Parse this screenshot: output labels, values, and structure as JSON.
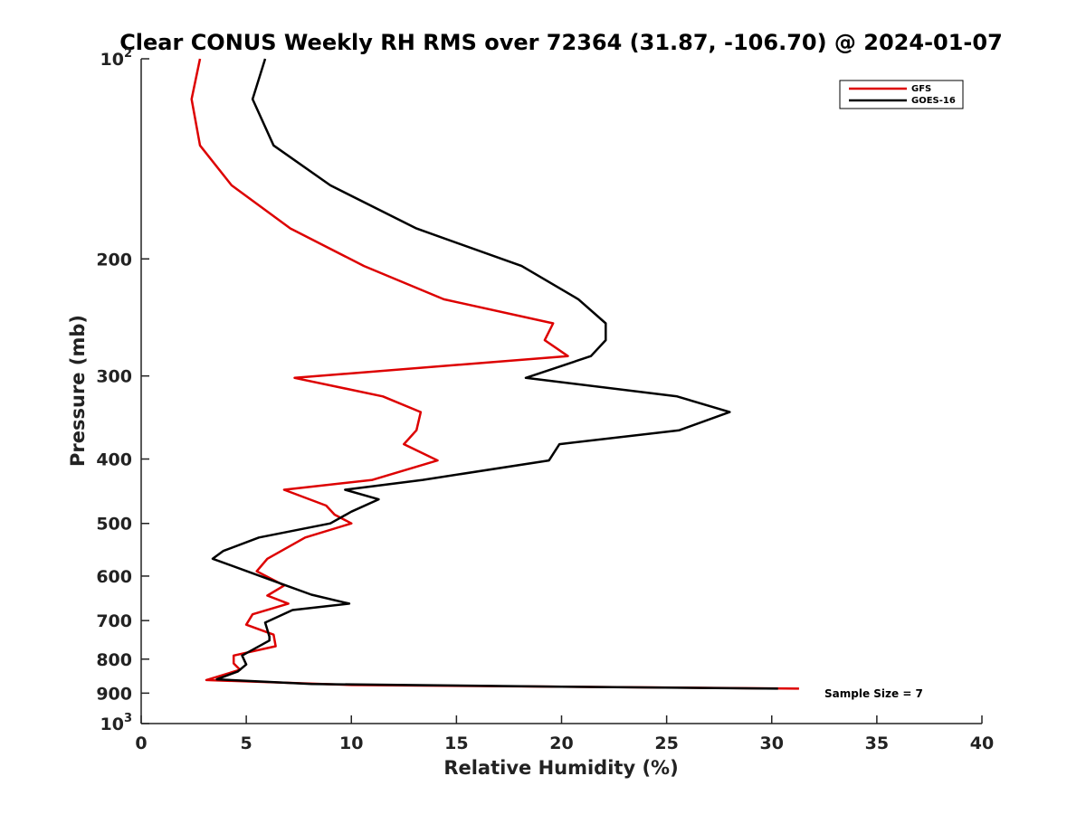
{
  "chart_data": {
    "type": "line",
    "title": "Clear CONUS Weekly RH RMS over 72364 (31.87, -106.70) @ 2024-01-07",
    "xlabel": "Relative Humidity (%)",
    "ylabel": "Pressure (mb)",
    "xlim": [
      0,
      40
    ],
    "ylim": [
      1000,
      100
    ],
    "yscale": "log",
    "y_reversed": true,
    "grid": false,
    "legend": "top-right",
    "x_ticks": [
      0,
      5,
      10,
      15,
      20,
      25,
      30,
      35,
      40
    ],
    "y_ticks": [
      {
        "value": 100,
        "base": "10",
        "exp": "2"
      },
      {
        "value": 200,
        "label": "200"
      },
      {
        "value": 300,
        "label": "300"
      },
      {
        "value": 400,
        "label": "400"
      },
      {
        "value": 500,
        "label": "500"
      },
      {
        "value": 600,
        "label": "600"
      },
      {
        "value": 700,
        "label": "700"
      },
      {
        "value": 800,
        "label": "800"
      },
      {
        "value": 900,
        "label": "900"
      },
      {
        "value": 1000,
        "base": "10",
        "exp": "3"
      }
    ],
    "annotation": "Sample Size = 7",
    "series": [
      {
        "name": "GFS",
        "color": "#dd0000",
        "points": [
          [
            2.8,
            100
          ],
          [
            2.4,
            115
          ],
          [
            2.8,
            135
          ],
          [
            4.3,
            155
          ],
          [
            7.1,
            180
          ],
          [
            10.6,
            205
          ],
          [
            14.4,
            230
          ],
          [
            19.6,
            250
          ],
          [
            19.2,
            265
          ],
          [
            20.3,
            280
          ],
          [
            7.3,
            302
          ],
          [
            11.5,
            322
          ],
          [
            13.3,
            340
          ],
          [
            13.1,
            362
          ],
          [
            12.5,
            380
          ],
          [
            14.1,
            402
          ],
          [
            11.0,
            430
          ],
          [
            6.8,
            445
          ],
          [
            8.8,
            470
          ],
          [
            9.2,
            485
          ],
          [
            10.0,
            500
          ],
          [
            7.8,
            525
          ],
          [
            6.0,
            565
          ],
          [
            5.5,
            590
          ],
          [
            6.8,
            620
          ],
          [
            6.0,
            642
          ],
          [
            7.0,
            660
          ],
          [
            5.3,
            685
          ],
          [
            5.0,
            710
          ],
          [
            6.3,
            735
          ],
          [
            6.4,
            765
          ],
          [
            4.4,
            790
          ],
          [
            4.4,
            812
          ],
          [
            4.7,
            830
          ],
          [
            3.1,
            860
          ],
          [
            10.0,
            875
          ],
          [
            20.0,
            880
          ],
          [
            31.3,
            886
          ]
        ]
      },
      {
        "name": "GOES-16",
        "color": "#000000",
        "points": [
          [
            5.9,
            100
          ],
          [
            5.3,
            115
          ],
          [
            6.3,
            135
          ],
          [
            9.0,
            155
          ],
          [
            13.1,
            180
          ],
          [
            18.1,
            205
          ],
          [
            20.8,
            230
          ],
          [
            22.1,
            250
          ],
          [
            22.1,
            265
          ],
          [
            21.4,
            280
          ],
          [
            18.3,
            302
          ],
          [
            25.5,
            322
          ],
          [
            28.0,
            340
          ],
          [
            25.6,
            362
          ],
          [
            19.9,
            380
          ],
          [
            19.4,
            402
          ],
          [
            13.4,
            430
          ],
          [
            9.7,
            445
          ],
          [
            11.3,
            460
          ],
          [
            10.0,
            480
          ],
          [
            9.0,
            500
          ],
          [
            5.6,
            525
          ],
          [
            3.9,
            550
          ],
          [
            3.4,
            565
          ],
          [
            6.9,
            620
          ],
          [
            8.1,
            640
          ],
          [
            9.9,
            660
          ],
          [
            7.2,
            675
          ],
          [
            5.9,
            705
          ],
          [
            6.1,
            740
          ],
          [
            6.1,
            750
          ],
          [
            4.8,
            790
          ],
          [
            5.0,
            815
          ],
          [
            4.6,
            835
          ],
          [
            3.6,
            858
          ],
          [
            8.1,
            872
          ],
          [
            20.0,
            880
          ],
          [
            30.3,
            886
          ]
        ]
      }
    ]
  }
}
